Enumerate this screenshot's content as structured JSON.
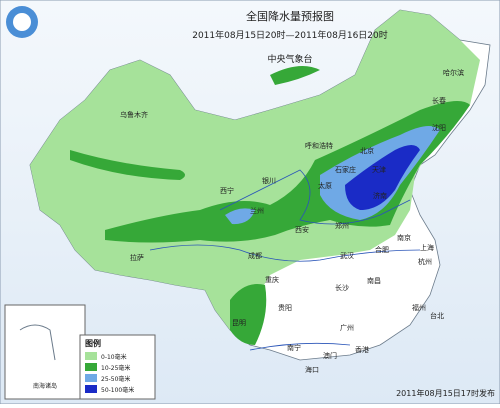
{
  "header": {
    "title": "全国降水量预报图",
    "period": "2011年08月15日20时—2011年08月16日20时",
    "issuer": "中央气象台"
  },
  "cities": [
    "乌鲁木齐",
    "哈尔滨",
    "长春",
    "沈阳",
    "呼和浩特",
    "北京",
    "天津",
    "石家庄",
    "太原",
    "济南",
    "银川",
    "西宁",
    "兰州",
    "郑州",
    "西安",
    "南京",
    "合肥",
    "上海",
    "武汉",
    "杭州",
    "成都",
    "重庆",
    "拉萨",
    "长沙",
    "南昌",
    "福州",
    "贵阳",
    "昆明",
    "广州",
    "南宁",
    "香港",
    "澳门",
    "海口",
    "台北"
  ],
  "inset": {
    "label": "南海诸岛"
  },
  "legend": {
    "title": "图例",
    "items": [
      "0-10毫米",
      "10-25毫米",
      "25-50毫米",
      "50-100毫米"
    ]
  },
  "footer": {
    "issued": "2011年08月15日17时发布"
  }
}
